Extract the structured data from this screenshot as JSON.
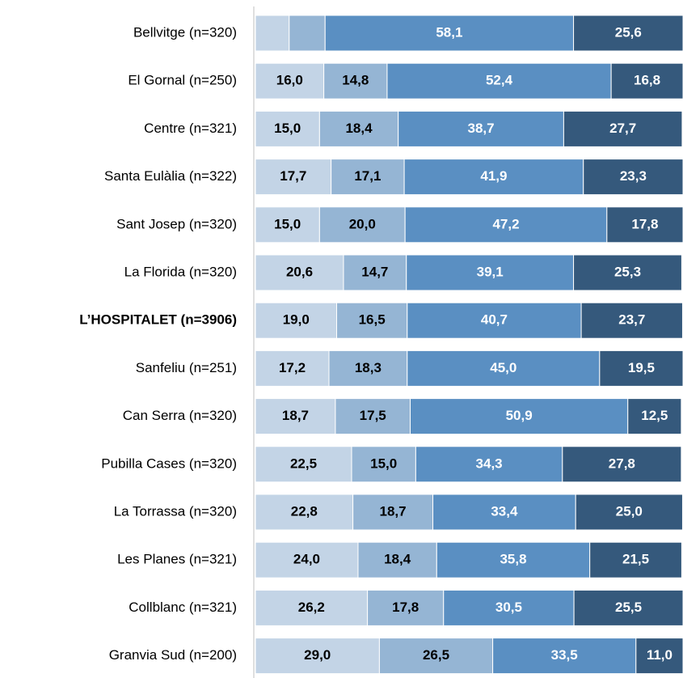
{
  "chart_data": {
    "type": "stacked_barh",
    "categories": [
      "Bellvitge (n=320)",
      "El Gornal (n=250)",
      "Centre (n=321)",
      "Santa Eulàlia (n=322)",
      "Sant Josep (n=320)",
      "La Florida (n=320)",
      "L’HOSPITALET (n=3906)",
      "Sanfeliu (n=251)",
      "Can Serra (n=320)",
      "Pubilla Cases (n=320)",
      "La Torrassa (n=320)",
      "Les Planes (n=321)",
      "Collblanc (n=321)",
      "Granvia Sud (n=200)"
    ],
    "bold_category": 6,
    "xlim": [
      0,
      100
    ],
    "series": [
      {
        "color": "#c3d4e6",
        "label_color": "#000000",
        "values": [
          7.9,
          16,
          15,
          17.7,
          15,
          20.6,
          19,
          17.2,
          18.7,
          22.5,
          22.8,
          24,
          26.2,
          29
        ],
        "value_labels": [
          null,
          "16,0",
          "15,0",
          "17,7",
          "15,0",
          "20,6",
          "19,0",
          "17,2",
          "18,7",
          "22,5",
          "22,8",
          "24,0",
          "26,2",
          "29,0"
        ]
      },
      {
        "color": "#95b5d4",
        "label_color": "#000000",
        "values": [
          8.4,
          14.8,
          18.4,
          17.1,
          20,
          14.7,
          16.5,
          18.3,
          17.5,
          15,
          18.7,
          18.4,
          17.8,
          26.5
        ],
        "value_labels": [
          null,
          "14,8",
          "18,4",
          "17,1",
          "20,0",
          "14,7",
          "16,5",
          "18,3",
          "17,5",
          "15,0",
          "18,7",
          "18,4",
          "17,8",
          "26,5"
        ]
      },
      {
        "color": "#5a8fc2",
        "label_color": "#ffffff",
        "values": [
          58.1,
          52.4,
          38.7,
          41.9,
          47.2,
          39.1,
          40.7,
          45,
          50.9,
          34.3,
          33.4,
          35.8,
          30.5,
          33.5
        ],
        "value_labels": [
          "58,1",
          "52,4",
          "38,7",
          "41,9",
          "47,2",
          "39,1",
          "40,7",
          "45,0",
          "50,9",
          "34,3",
          "33,4",
          "35,8",
          "30,5",
          "33,5"
        ]
      },
      {
        "color": "#35597c",
        "label_color": "#ffffff",
        "values": [
          25.6,
          16.8,
          27.7,
          23.3,
          17.8,
          25.3,
          23.7,
          19.5,
          12.5,
          27.8,
          25,
          21.5,
          25.5,
          11
        ],
        "value_labels": [
          "25,6",
          "16,8",
          "27,7",
          "23,3",
          "17,8",
          "25,3",
          "23,7",
          "19,5",
          "12,5",
          "27,8",
          "25,0",
          "21,5",
          "25,5",
          "11,0"
        ]
      }
    ]
  }
}
